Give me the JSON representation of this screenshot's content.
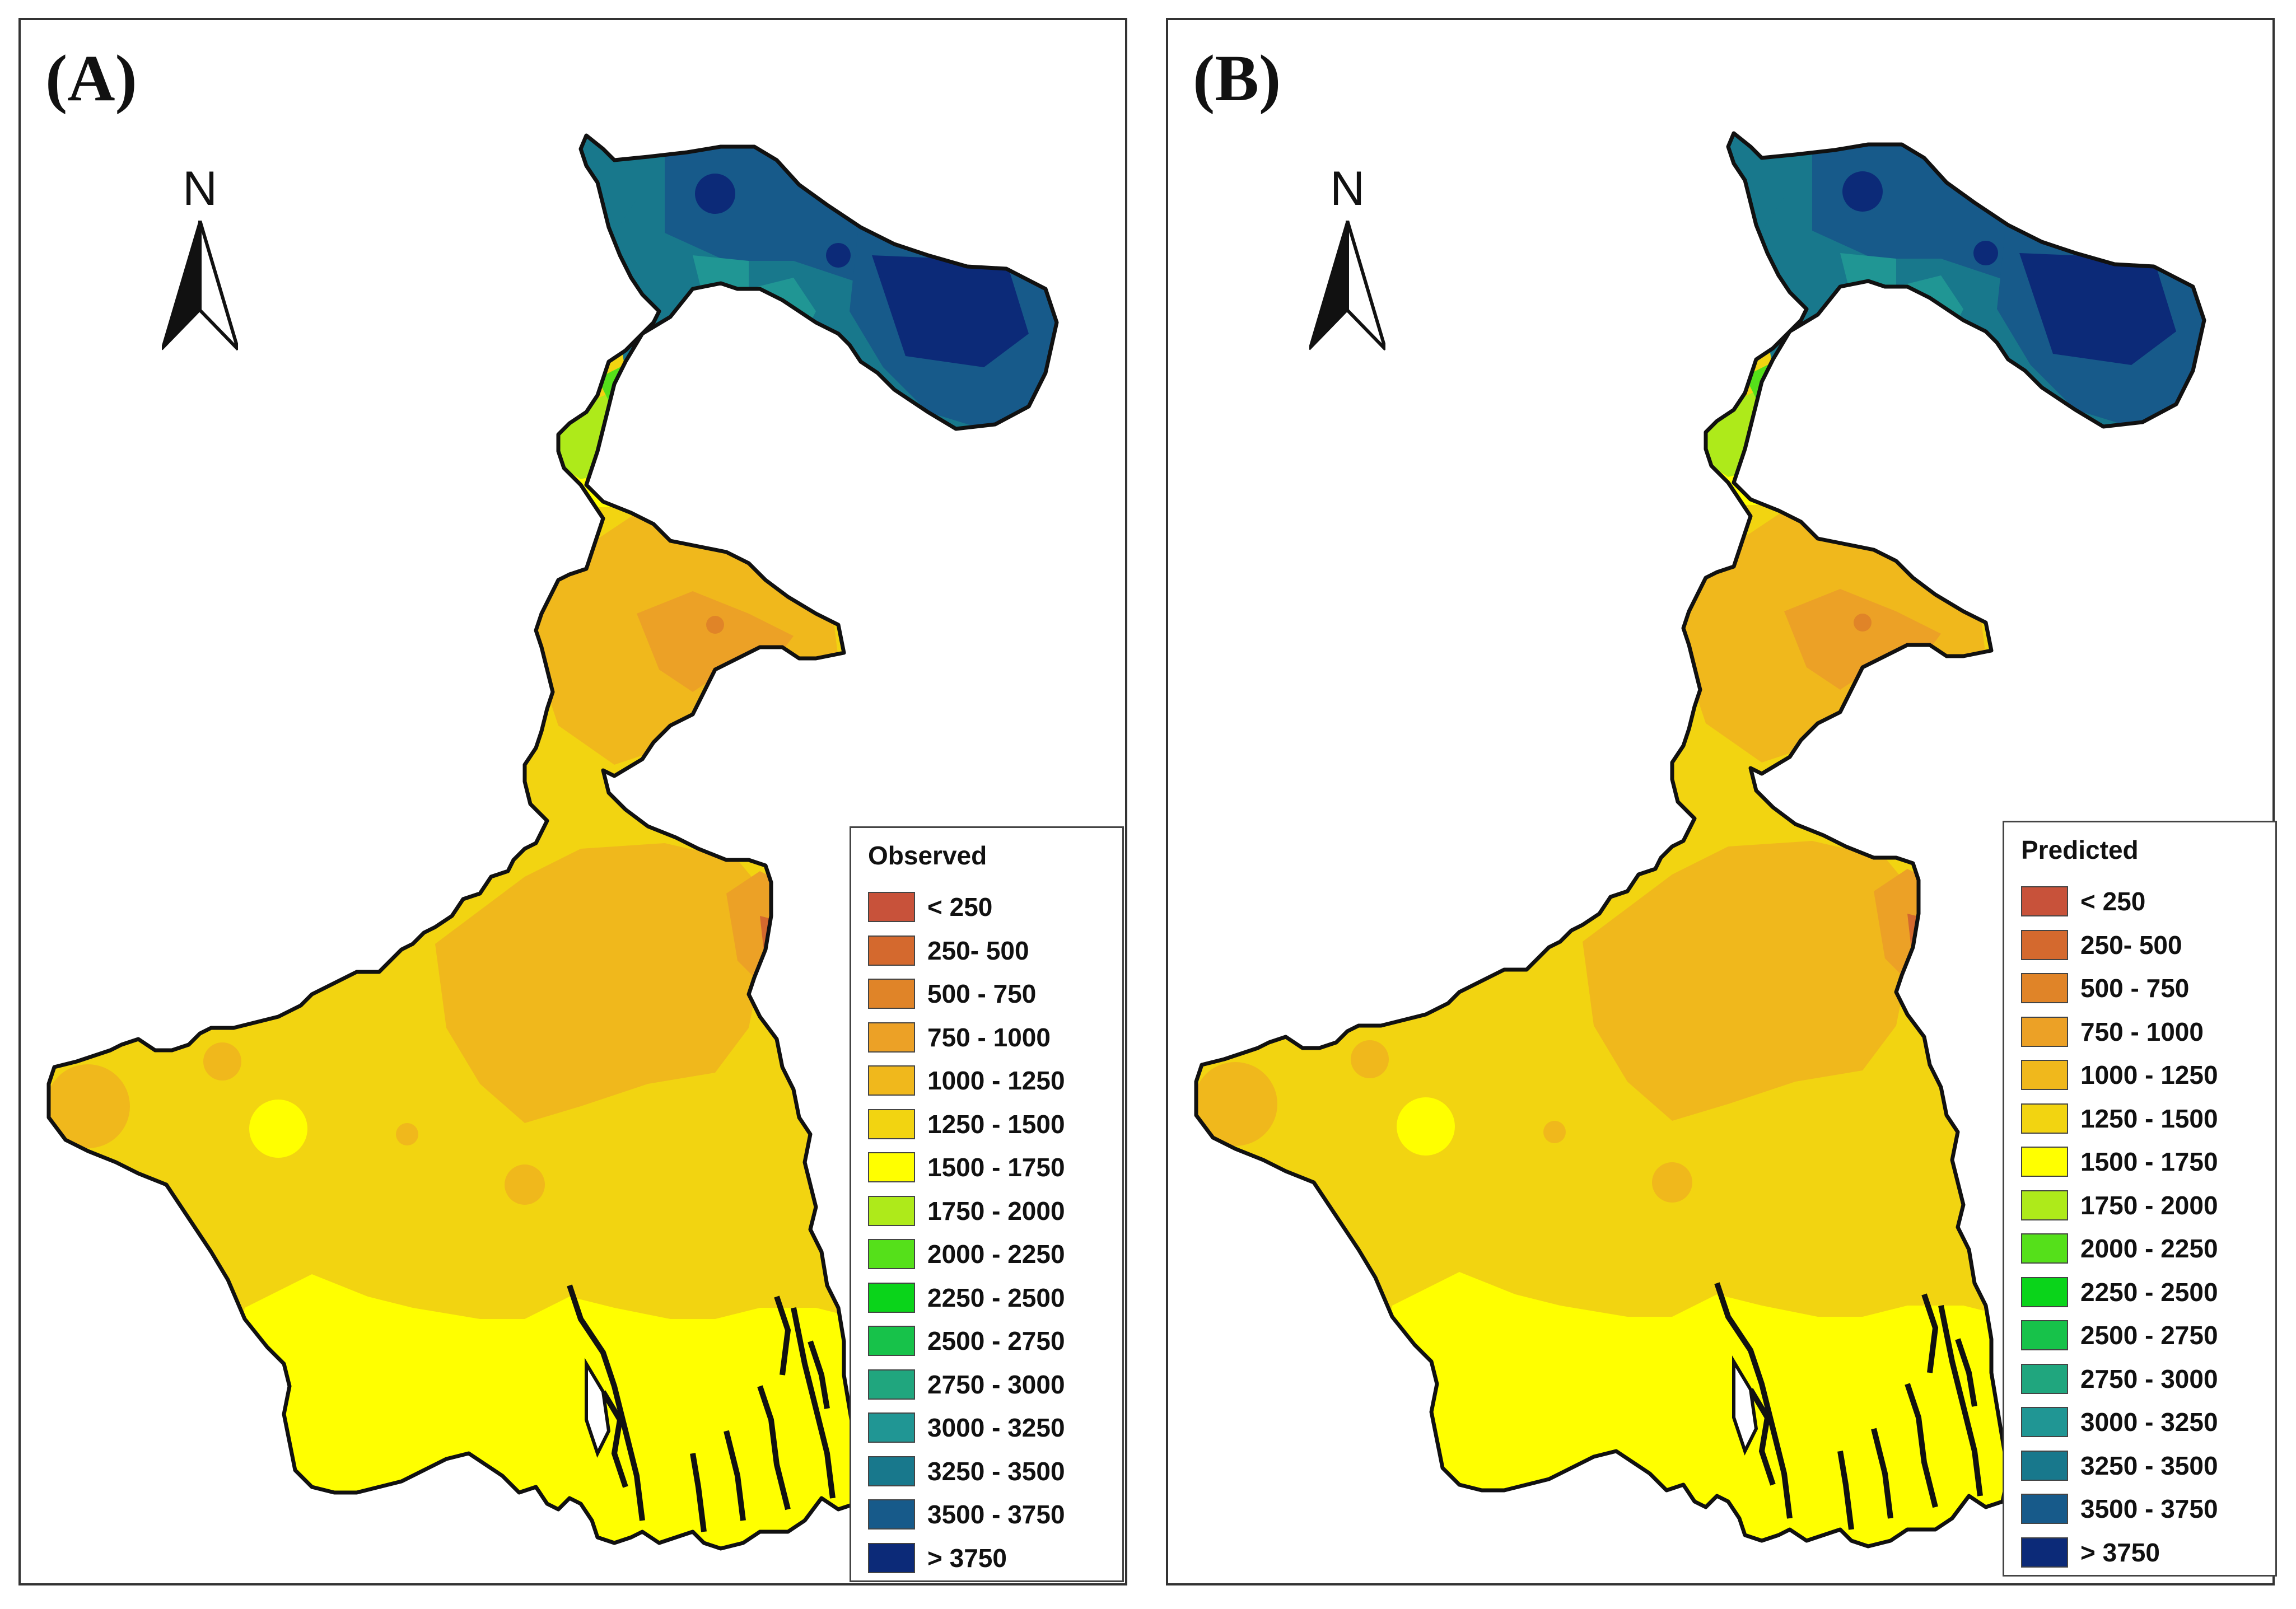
{
  "panels": [
    {
      "id": "A",
      "label": "(A)",
      "legend_title": "Observed"
    },
    {
      "id": "B",
      "label": "(B)",
      "legend_title": "Predicted"
    }
  ],
  "north_label": "N",
  "legend_classes": [
    {
      "label": "< 250",
      "color": "#c8523a"
    },
    {
      "label": "250- 500",
      "color": "#d4692e"
    },
    {
      "label": "500 - 750",
      "color": "#e08428"
    },
    {
      "label": "750 - 1000",
      "color": "#eca126"
    },
    {
      "label": "1000 - 1250",
      "color": "#f0b81c"
    },
    {
      "label": "1250 - 1500",
      "color": "#f2d411"
    },
    {
      "label": "1500 - 1750",
      "color": "#ffff00"
    },
    {
      "label": "1750 - 2000",
      "color": "#aeea1a"
    },
    {
      "label": "2000 - 2250",
      "color": "#55e01a"
    },
    {
      "label": "2250 - 2500",
      "color": "#0ad41a"
    },
    {
      "label": "2500 - 2750",
      "color": "#17c24a"
    },
    {
      "label": "2750 - 3000",
      "color": "#20a67e"
    },
    {
      "label": "3000 - 3250",
      "color": "#209694"
    },
    {
      "label": "3250 - 3500",
      "color": "#18788c"
    },
    {
      "label": "3500 - 3750",
      "color": "#175a8a"
    },
    {
      "label": "> 3750",
      "color": "#0c2a78"
    }
  ],
  "map_colors": {
    "outline": "#111111",
    "base_south": "#f2d411",
    "mid": "#f0b81c",
    "coast": "#ffff00",
    "hill_dark": "#0c2a78",
    "hill_mid": "#175a8a",
    "hill_teal": "#18788c",
    "hill_light": "#209694",
    "hill_green": "#20a67e",
    "neck_green": "#55e01a",
    "neck_lime": "#aeea1a",
    "orange": "#eca126",
    "dark_orange": "#e08428",
    "red_hotspot": "#d4692e",
    "river": "#ffffff"
  }
}
